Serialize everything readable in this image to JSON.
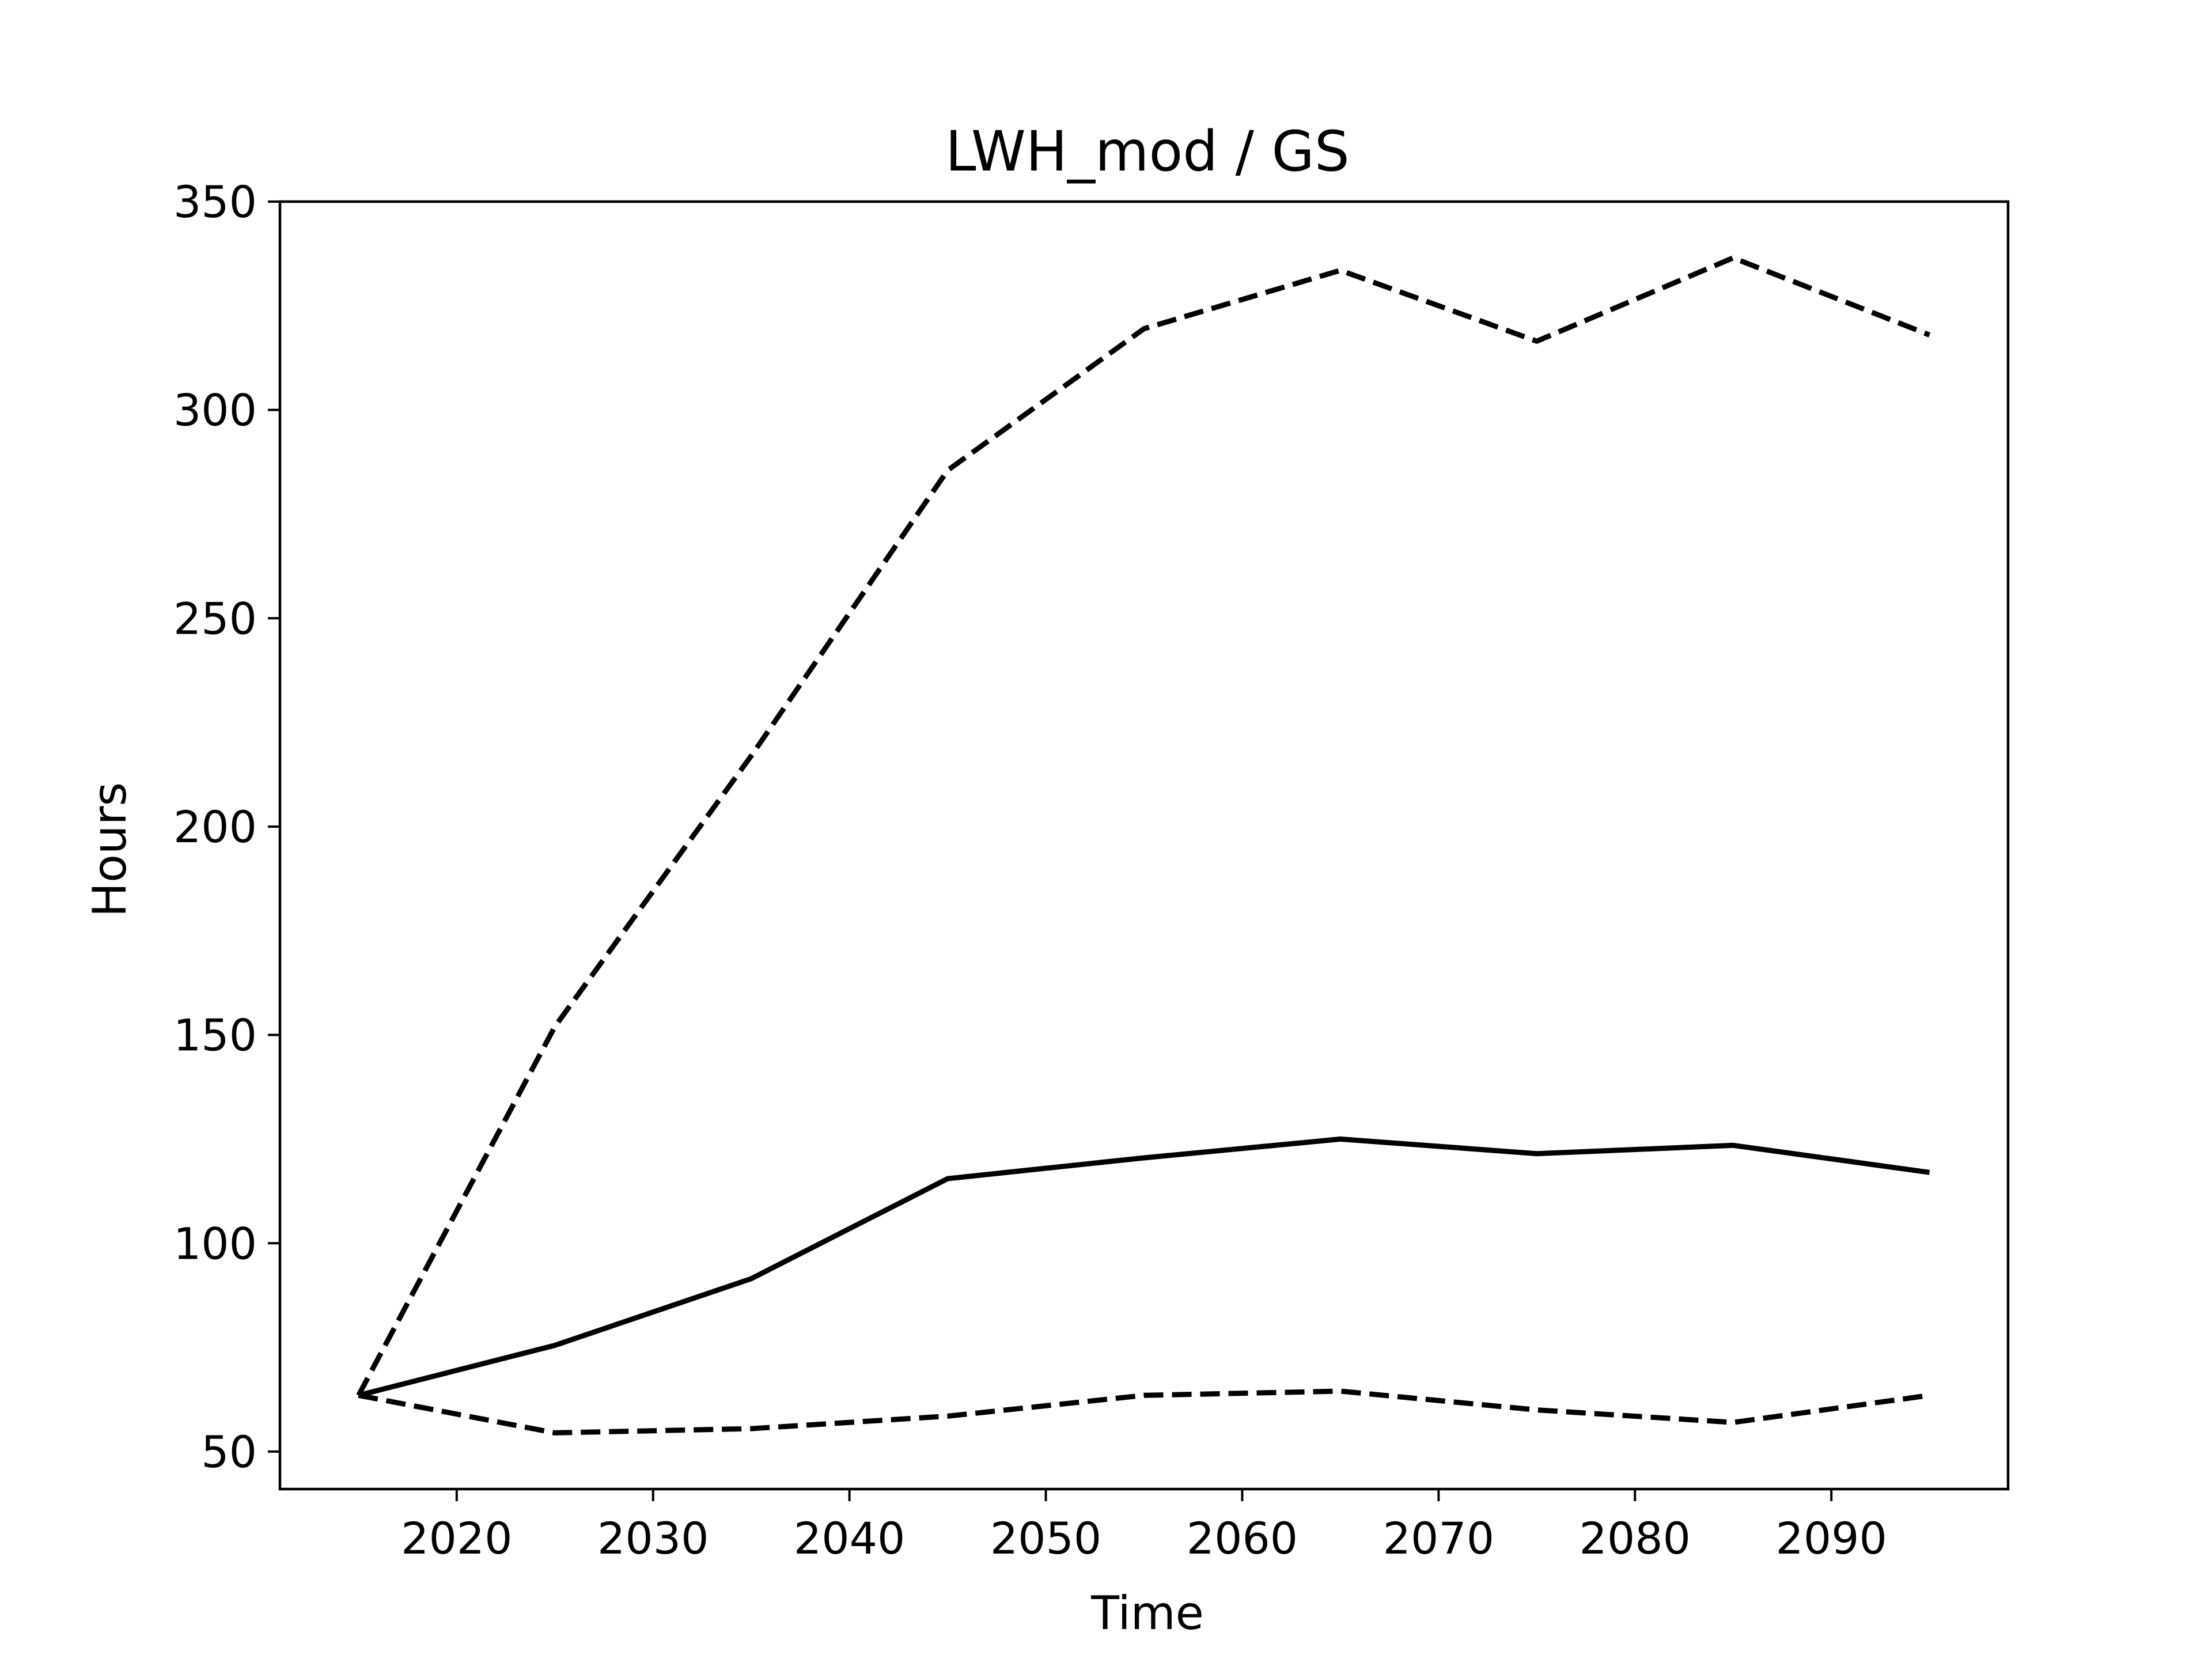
{
  "chart_data": {
    "type": "line",
    "title": "LWH_mod / GS",
    "xlabel": "Time",
    "ylabel": "Hours",
    "xlim": [
      2011,
      2099
    ],
    "ylim": [
      41,
      350
    ],
    "xticks": [
      2020,
      2030,
      2040,
      2050,
      2060,
      2070,
      2080,
      2090
    ],
    "yticks": [
      50,
      100,
      150,
      200,
      250,
      300,
      350
    ],
    "grid": false,
    "x": [
      2015,
      2025,
      2035,
      2045,
      2055,
      2065,
      2075,
      2085,
      2095
    ],
    "series": [
      {
        "style": "solid",
        "color": "#000000",
        "values": [
          63.5,
          75.5,
          91.5,
          115.5,
          120.5,
          125,
          121.5,
          123.5,
          117
        ]
      },
      {
        "style": "dashed",
        "color": "#000000",
        "values": [
          63.5,
          152,
          217,
          285.5,
          319.5,
          333.5,
          316.5,
          336.5,
          318
        ]
      },
      {
        "style": "dashed",
        "color": "#000000",
        "values": [
          63.5,
          54.5,
          55.5,
          58.5,
          63.5,
          64.5,
          60,
          57,
          63.5
        ]
      }
    ]
  }
}
